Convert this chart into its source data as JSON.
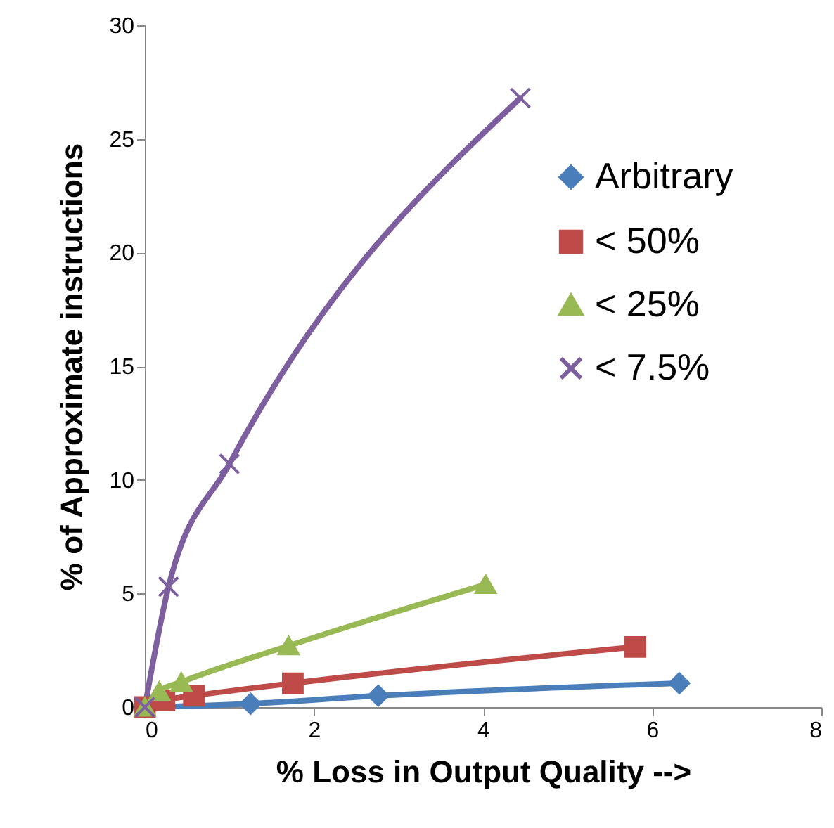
{
  "chart_data": {
    "type": "line",
    "xlabel": "% Loss in Output Quality -->",
    "ylabel": "% of Approximate instructions",
    "xlim": [
      0,
      8
    ],
    "xticks": [
      0,
      2,
      4,
      6,
      8
    ],
    "ylim": [
      0,
      30
    ],
    "yticks": [
      0,
      5,
      10,
      15,
      20,
      25,
      30
    ],
    "grid": false,
    "legend": "top right",
    "series": [
      {
        "name": "Arbitrary",
        "color": "#4a7ebb",
        "marker": "diamond",
        "x": [
          0,
          1.25,
          2.76,
          6.32
        ],
        "values": [
          0,
          0.15,
          0.5,
          1.05
        ]
      },
      {
        "name": "< 50%",
        "color": "#be4b48",
        "marker": "square",
        "x": [
          0,
          0.23,
          0.58,
          1.75,
          5.8
        ],
        "values": [
          0,
          0.3,
          0.5,
          1.05,
          2.65
        ]
      },
      {
        "name": "< 25%",
        "color": "#98b954",
        "marker": "triangle",
        "x": [
          0,
          0.17,
          0.43,
          1.7,
          4.03
        ],
        "values": [
          0,
          0.7,
          1.1,
          2.7,
          5.4
        ]
      },
      {
        "name": "< 7.5%",
        "color": "#7d5fa0",
        "marker": "cross",
        "x": [
          0,
          0.28,
          1.0,
          4.44
        ],
        "values": [
          0,
          5.3,
          10.7,
          26.8
        ]
      }
    ]
  }
}
